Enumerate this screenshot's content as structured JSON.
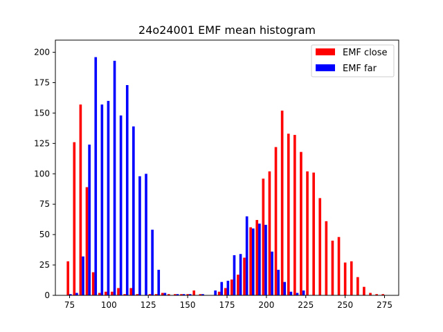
{
  "chart_data": {
    "type": "bar",
    "title": "24o24001 EMF mean histogram",
    "xlabel": "",
    "ylabel": "",
    "xlim": [
      66,
      284
    ],
    "ylim": [
      0,
      210
    ],
    "xticks": [
      75,
      100,
      125,
      150,
      175,
      200,
      225,
      250,
      275
    ],
    "yticks": [
      0,
      25,
      50,
      75,
      100,
      125,
      150,
      175,
      200
    ],
    "bin_width": 4,
    "bar_width": 1.6,
    "legend": {
      "position": "top-right"
    },
    "series": [
      {
        "name": "EMF close",
        "color": "#ff0000",
        "x": [
          74.0,
          78.0,
          82.0,
          86.0,
          90.0,
          94.0,
          98.0,
          102.0,
          106.0,
          110.0,
          114.0,
          118.0,
          122.0,
          126.0,
          130.0,
          134.0,
          138.0,
          142.0,
          146.0,
          150.0,
          154.0,
          158.0,
          162.0,
          166.0,
          170.0,
          174.0,
          178.0,
          182.0,
          186.0,
          190.0,
          194.0,
          198.0,
          202.0,
          206.0,
          210.0,
          214.0,
          218.0,
          222.0,
          226.0,
          230.0,
          234.0,
          238.0,
          242.0,
          246.0,
          250.0,
          254.0,
          258.0,
          262.0,
          266.0,
          270.0,
          274.0
        ],
        "values": [
          28,
          126,
          157,
          89,
          19,
          2,
          3,
          3,
          6,
          1,
          6,
          1,
          0,
          1,
          1,
          2,
          1,
          1,
          1,
          1,
          4,
          1,
          0,
          0,
          3,
          6,
          13,
          17,
          31,
          56,
          62,
          96,
          102,
          122,
          152,
          133,
          132,
          118,
          102,
          101,
          80,
          61,
          45,
          48,
          27,
          28,
          15,
          7,
          2,
          1,
          1
        ]
      },
      {
        "name": "EMF far",
        "color": "#0000ff",
        "x": [
          75.6,
          79.6,
          83.6,
          87.6,
          91.6,
          95.6,
          99.6,
          103.6,
          107.6,
          111.6,
          115.6,
          119.6,
          123.6,
          127.6,
          131.6,
          135.6,
          139.6,
          143.6,
          147.6,
          151.6,
          155.6,
          159.6,
          163.6,
          167.6,
          171.6,
          175.6,
          179.6,
          183.6,
          187.6,
          191.6,
          195.6,
          199.6,
          203.6,
          207.6,
          211.6,
          215.6,
          219.6,
          223.6,
          227.6,
          231.6,
          235.6,
          239.6,
          243.6,
          247.6,
          251.6,
          255.6,
          259.6,
          263.6,
          267.6,
          271.6,
          275.6
        ],
        "values": [
          1,
          2,
          32,
          124,
          196,
          157,
          160,
          193,
          148,
          173,
          139,
          98,
          100,
          54,
          21,
          2,
          0,
          1,
          1,
          1,
          0,
          1,
          0,
          4,
          11,
          12,
          33,
          34,
          65,
          55,
          59,
          58,
          36,
          21,
          11,
          3,
          2,
          4,
          0,
          0,
          0,
          0,
          0,
          0,
          0,
          0,
          0,
          0,
          0,
          0,
          0
        ]
      }
    ]
  }
}
